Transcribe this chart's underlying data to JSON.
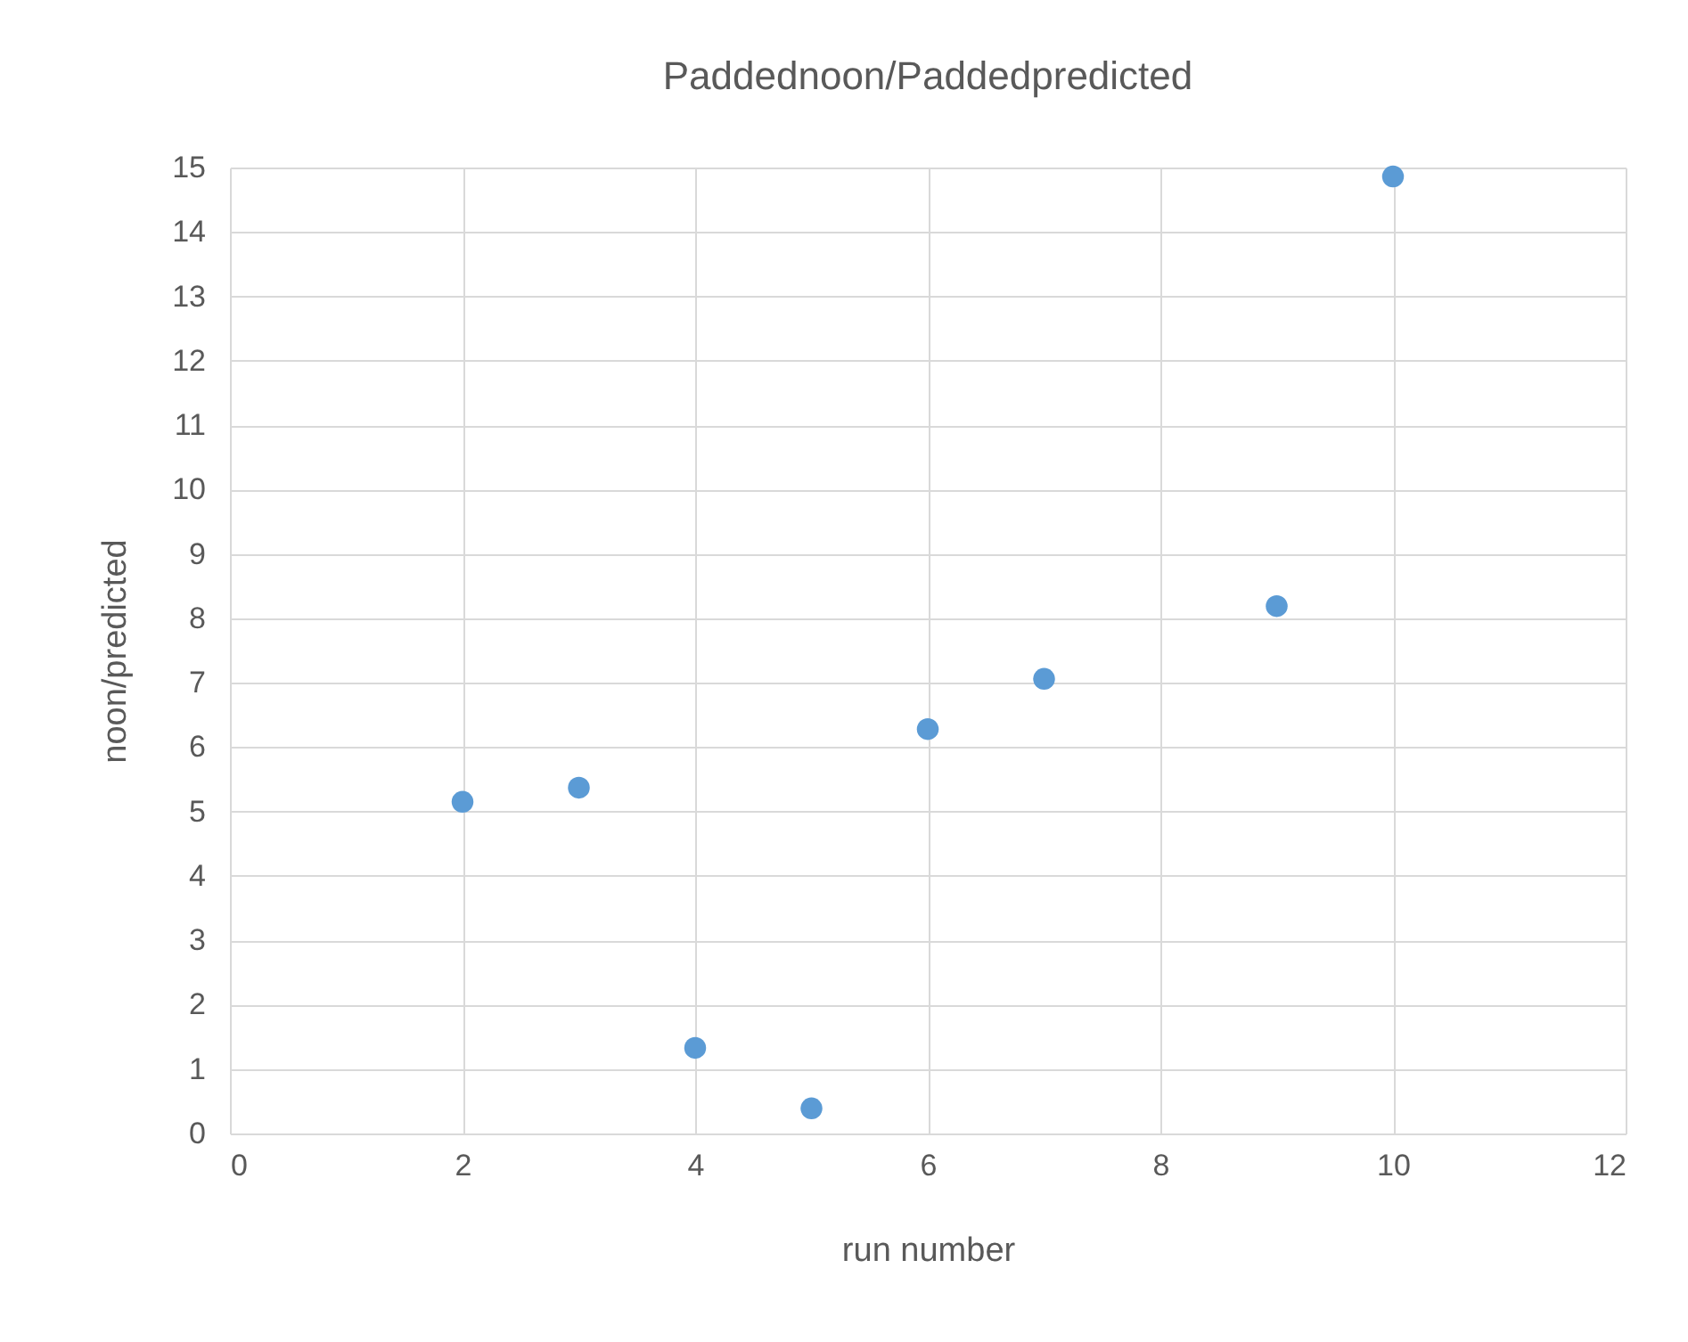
{
  "chart_data": {
    "type": "scatter",
    "title": "Paddednoon/Paddedpredicted",
    "xlabel": "run number",
    "ylabel": "noon/predicted",
    "x": [
      2,
      3,
      4,
      5,
      6,
      7,
      9,
      10
    ],
    "series": [
      {
        "color": "#5b9bd5",
        "values": [
          5.15,
          5.37,
          1.33,
          0.39,
          6.28,
          7.06,
          8.19,
          14.86
        ]
      }
    ],
    "xlim": [
      0,
      12
    ],
    "xticks": [
      0,
      2,
      4,
      6,
      8,
      10,
      12
    ],
    "ylim": [
      0,
      15
    ],
    "yticks": [
      0,
      1,
      2,
      3,
      4,
      5,
      6,
      7,
      8,
      9,
      10,
      11,
      12,
      13,
      14,
      15
    ],
    "grid": true,
    "marker": "circle",
    "legend": false
  }
}
